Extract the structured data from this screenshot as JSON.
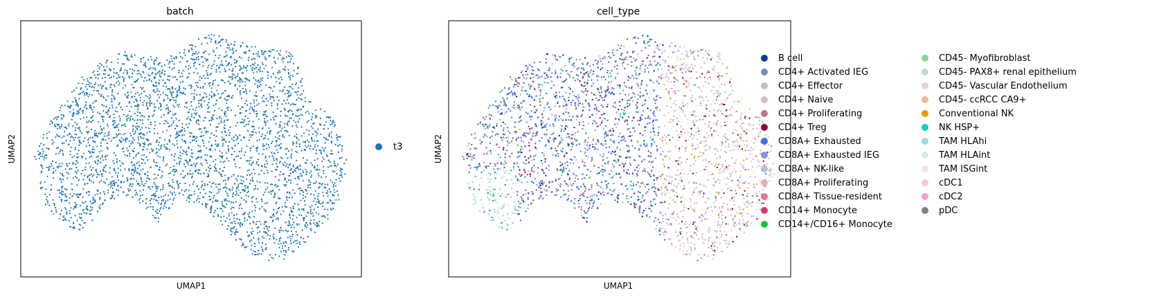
{
  "chart_data": [
    {
      "type": "scatter",
      "title": "batch",
      "xlabel": "UMAP1",
      "ylabel": "UMAP2",
      "grid": false,
      "ticks": false,
      "legend": {
        "placement": "right",
        "entries": [
          {
            "name": "t3",
            "color": "#1f77b4"
          }
        ]
      },
      "point_count_estimate": 4500,
      "shape_note": "single cloud; one batch covers all cells"
    },
    {
      "type": "scatter",
      "title": "cell_type",
      "xlabel": "UMAP1",
      "ylabel": "UMAP2",
      "grid": false,
      "ticks": false,
      "legend": {
        "placement": "right",
        "columns": 2,
        "entries": [
          {
            "name": "B cell",
            "color": "#023fa5"
          },
          {
            "name": "CD4+ Activated IEG",
            "color": "#7d87b9"
          },
          {
            "name": "CD4+ Effector",
            "color": "#bec1d4"
          },
          {
            "name": "CD4+ Naive",
            "color": "#d6bcc0"
          },
          {
            "name": "CD4+ Proliferating",
            "color": "#bb7784"
          },
          {
            "name": "CD4+ Treg",
            "color": "#8e063b"
          },
          {
            "name": "CD8A+ Exhausted",
            "color": "#4a6fe3"
          },
          {
            "name": "CD8A+ Exhausted IEG",
            "color": "#8595e1"
          },
          {
            "name": "CD8A+ NK-like",
            "color": "#b5bbe3"
          },
          {
            "name": "CD8A+ Proliferating",
            "color": "#e6afb9"
          },
          {
            "name": "CD8A+ Tissue-resident",
            "color": "#e07b91"
          },
          {
            "name": "CD14+ Monocyte",
            "color": "#d33f6a"
          },
          {
            "name": "CD14+/CD16+ Monocyte",
            "color": "#11c638"
          },
          {
            "name": "CD45- Myofibroblast",
            "color": "#8dd593"
          },
          {
            "name": "CD45- PAX8+ renal epithelium",
            "color": "#c6dec7"
          },
          {
            "name": "CD45- Vascular Endothelium",
            "color": "#ead3c6"
          },
          {
            "name": "CD45- ccRCC CA9+",
            "color": "#f0b98d"
          },
          {
            "name": "Conventional NK",
            "color": "#ef9708"
          },
          {
            "name": "NK HSP+",
            "color": "#0fcfc0"
          },
          {
            "name": "TAM HLAhi",
            "color": "#9cded6"
          },
          {
            "name": "TAM HLAint",
            "color": "#d5eae7"
          },
          {
            "name": "TAM ISGint",
            "color": "#f3e1eb"
          },
          {
            "name": "cDC1",
            "color": "#f6c4e1"
          },
          {
            "name": "cDC2",
            "color": "#f79cd4"
          },
          {
            "name": "pDC",
            "color": "#7f7f7f"
          }
        ]
      },
      "point_count_estimate": 3500,
      "shape_note": "same embedding as panel 1; T cells left/center, TAM clusters lower-left, epithelium/NK right"
    }
  ]
}
